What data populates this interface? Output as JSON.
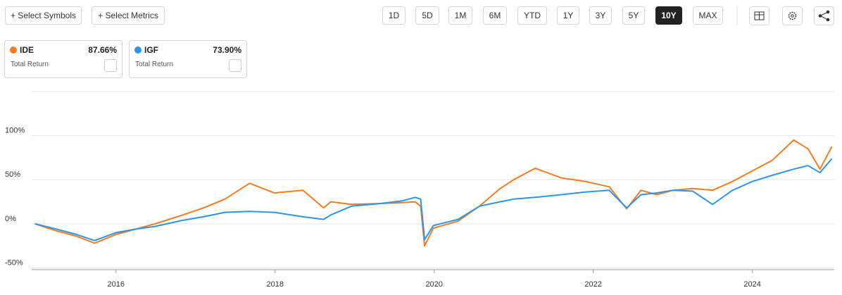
{
  "toolbar": {
    "buttons": [
      "+ Select Symbols",
      "+ Select Metrics"
    ],
    "ranges": [
      "1D",
      "5D",
      "1M",
      "6M",
      "YTD",
      "1Y",
      "3Y",
      "5Y",
      "10Y",
      "MAX"
    ],
    "active_range": 8
  },
  "cards": [
    {
      "value": "87.66%",
      "metric": "Total Return"
    },
    {
      "value": "73.90%",
      "metric": "Total Return"
    }
  ],
  "chart_data": {
    "type": "line",
    "x": [
      2014.98,
      2015.25,
      2015.5,
      2015.73,
      2016.0,
      2016.25,
      2016.49,
      2016.84,
      2017.1,
      2017.37,
      2017.68,
      2017.99,
      2018.35,
      2018.61,
      2018.7,
      2018.96,
      2019.32,
      2019.6,
      2019.76,
      2019.83,
      2019.88,
      2019.99,
      2020.3,
      2020.57,
      2020.83,
      2021.0,
      2021.27,
      2021.6,
      2021.9,
      2022.2,
      2022.42,
      2022.6,
      2022.8,
      2023.0,
      2023.25,
      2023.5,
      2023.75,
      2024.0,
      2024.25,
      2024.52,
      2024.7,
      2024.85,
      2025.0
    ],
    "series": [
      {
        "name": "IDE",
        "color": "#f47b20",
        "values": [
          0,
          -8,
          -14,
          -22,
          -12,
          -6,
          0,
          10,
          18,
          28,
          46,
          35,
          38,
          18,
          25,
          22,
          23,
          24,
          25,
          20,
          -25,
          -5,
          3,
          20,
          40,
          50,
          63,
          52,
          48,
          42,
          17,
          38,
          33,
          38,
          40,
          38,
          48,
          60,
          72,
          95,
          85,
          62,
          87.66
        ]
      },
      {
        "name": "IGF",
        "color": "#2d95e8",
        "values": [
          0,
          -6,
          -12,
          -19,
          -10,
          -6,
          -3,
          4,
          8,
          13,
          14,
          13,
          8,
          5,
          10,
          20,
          23,
          26,
          30,
          28,
          -18,
          -2,
          5,
          20,
          25,
          28,
          30,
          33,
          36,
          38,
          18,
          33,
          35,
          38,
          37,
          22,
          38,
          48,
          55,
          62,
          66,
          58,
          73.9
        ]
      }
    ],
    "xlim": [
      2014.94,
      2025.03
    ],
    "xticks": [
      2016,
      2018,
      2020,
      2022,
      2024
    ],
    "ylim": [
      -52,
      150
    ],
    "yticks": [
      {
        "value": -50,
        "label": "-50%"
      },
      {
        "value": 0,
        "label": "0%"
      },
      {
        "value": 50,
        "label": "50%"
      },
      {
        "value": 100,
        "label": "100%"
      }
    ],
    "grid": true
  }
}
